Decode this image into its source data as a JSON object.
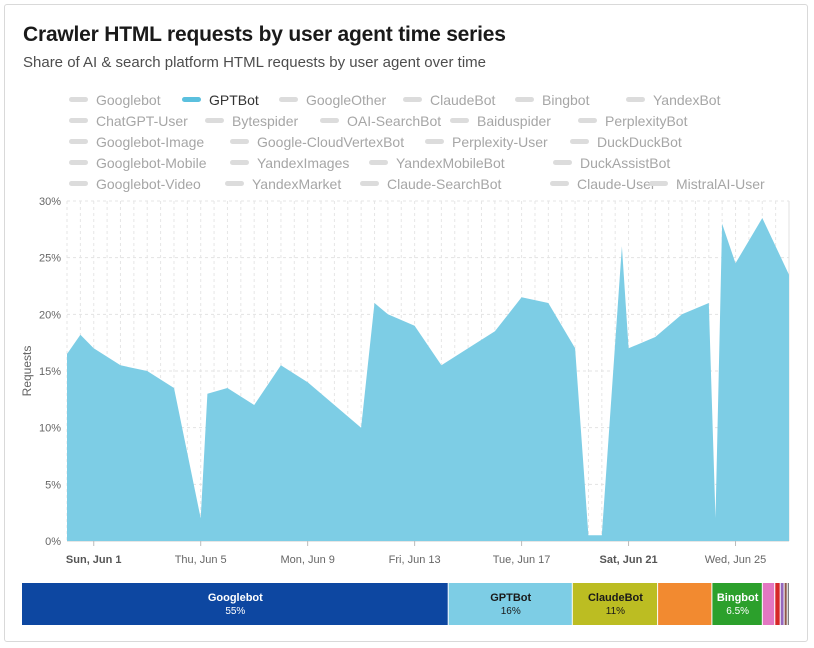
{
  "title": "Crawler HTML requests by user agent time series",
  "subtitle": "Share of AI & search platform HTML requests by user agent over time",
  "legend": {
    "active": "GPTBot",
    "rows": [
      [
        "Googlebot",
        "GPTBot",
        "GoogleOther",
        "ClaudeBot",
        "Bingbot",
        "YandexBot"
      ],
      [
        "ChatGPT-User",
        "Bytespider",
        "OAI-SearchBot",
        "Baiduspider",
        "PerplexityBot"
      ],
      [
        "Googlebot-Image",
        "Google-CloudVertexBot",
        "Perplexity-User",
        "DuckDuckBot"
      ],
      [
        "Googlebot-Mobile",
        "YandexImages",
        "YandexMobileBot",
        "DuckAssistBot"
      ],
      [
        "Googlebot-Video",
        "YandexMarket",
        "Claude-SearchBot",
        "Claude-User",
        "MistralAI-User"
      ]
    ]
  },
  "chart_data": [
    {
      "type": "area",
      "series": [
        {
          "name": "GPTBot",
          "color": "#7dcde5"
        }
      ],
      "ylabel": "Requests",
      "ylim": [
        0,
        30
      ],
      "yticks": [
        "0%",
        "5%",
        "10%",
        "15%",
        "20%",
        "25%",
        "30%"
      ],
      "xlim_days": [
        "May 31",
        "Jun 27"
      ],
      "xticks": [
        "Sun, Jun 1",
        "Thu, Jun 5",
        "Mon, Jun 9",
        "Fri, Jun 13",
        "Tue, Jun 17",
        "Sat, Jun 21",
        "Wed, Jun 25"
      ],
      "xticks_bold": [
        true,
        false,
        false,
        false,
        false,
        true,
        false
      ],
      "grid": true,
      "x": [
        "May 31",
        "May 31 12:00",
        "Jun 1",
        "Jun 2",
        "Jun 3",
        "Jun 4",
        "Jun 5",
        "Jun 5 06:00",
        "Jun 6",
        "Jun 7",
        "Jun 8",
        "Jun 9",
        "Jun 10",
        "Jun 11",
        "Jun 11 12:00",
        "Jun 12",
        "Jun 13",
        "Jun 14",
        "Jun 15",
        "Jun 16",
        "Jun 17",
        "Jun 18",
        "Jun 19",
        "Jun 19 12:00",
        "Jun 20",
        "Jun 20 18:00",
        "Jun 21",
        "Jun 22",
        "Jun 23",
        "Jun 24",
        "Jun 24 06:00",
        "Jun 24 12:00",
        "Jun 25",
        "Jun 26",
        "Jun 27"
      ],
      "values": [
        16.5,
        18.2,
        17.0,
        15.5,
        15.0,
        13.5,
        2.0,
        13.0,
        13.5,
        12.0,
        15.5,
        14.0,
        12.0,
        10.0,
        21.0,
        20.0,
        19.0,
        15.5,
        17.0,
        18.5,
        21.5,
        21.0,
        17.0,
        0.5,
        0.5,
        26.0,
        17.0,
        18.0,
        20.0,
        21.0,
        2.0,
        28.0,
        24.5,
        28.5,
        23.5
      ]
    },
    {
      "type": "bar",
      "stacked": true,
      "categories": [
        "Googlebot",
        "GPTBot",
        "ClaudeBot",
        "",
        "Bingbot",
        "",
        "",
        "",
        "",
        ""
      ],
      "values": [
        55,
        16,
        11,
        7.0,
        6.5,
        1.6,
        0.7,
        0.5,
        0.4,
        0.3
      ],
      "labels": [
        "55%",
        "16%",
        "11%",
        "",
        "6.5%",
        "",
        "",
        "",
        "",
        ""
      ],
      "colors": [
        "#0d47a1",
        "#7dcde5",
        "#bcbd22",
        "#f28a30",
        "#2ca02c",
        "#e377c2",
        "#d62728",
        "#9467bd",
        "#8c564b",
        "#7f7f7f"
      ]
    }
  ]
}
